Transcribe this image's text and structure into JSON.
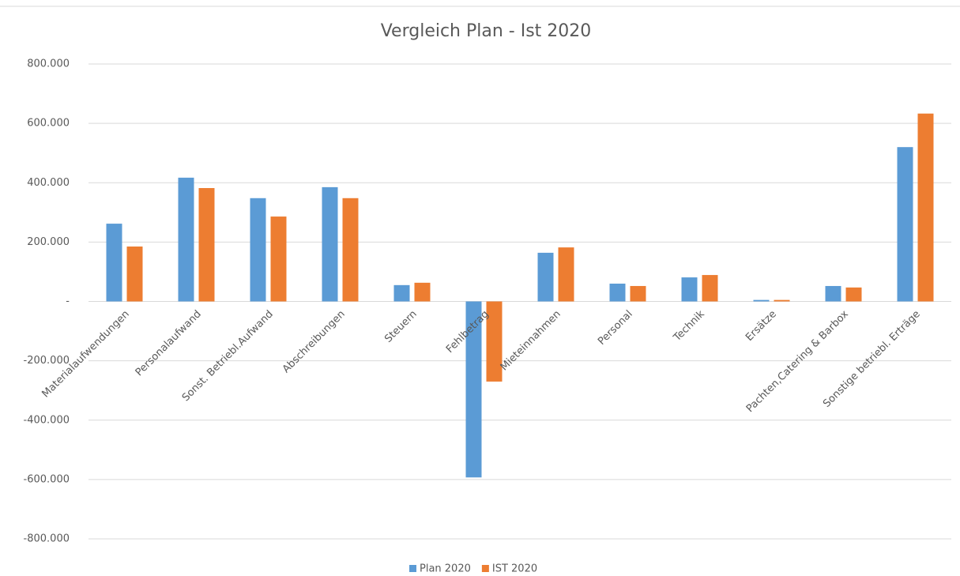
{
  "chart_data": {
    "type": "bar",
    "title": "Vergleich Plan - Ist 2020",
    "categories": [
      "Materialaufwendungen",
      "Personalaufwand",
      "Sonst. Betriebl.Aufwand",
      "Abschreibungen",
      "Steuern",
      "Fehlbetrag",
      "Mieteinnahmen",
      "Personal",
      "Technik",
      "Ersätze",
      "Pachten,Catering & Barbox",
      "Sonstige betriebl. Erträge"
    ],
    "series": [
      {
        "name": "Plan 2020",
        "color": "#5b9bd5",
        "values": [
          262000,
          417000,
          348000,
          385000,
          55000,
          -593000,
          164000,
          60000,
          81000,
          5000,
          52000,
          520000
        ]
      },
      {
        "name": "IST 2020",
        "color": "#ed7d31",
        "values": [
          185000,
          382000,
          286000,
          348000,
          63000,
          -270000,
          182000,
          52000,
          89000,
          5000,
          47000,
          633000
        ]
      }
    ],
    "ylim": [
      -800000,
      800000
    ],
    "yticks": [
      {
        "value": -800000,
        "label": "-800.000"
      },
      {
        "value": -600000,
        "label": "-600.000"
      },
      {
        "value": -400000,
        "label": "-400.000"
      },
      {
        "value": -200000,
        "label": "-200.000"
      },
      {
        "value": 0,
        "label": "-"
      },
      {
        "value": 200000,
        "label": "200.000"
      },
      {
        "value": 400000,
        "label": "400.000"
      },
      {
        "value": 600000,
        "label": "600.000"
      },
      {
        "value": 800000,
        "label": "800.000"
      }
    ],
    "grid": true,
    "legend": "bottom"
  }
}
